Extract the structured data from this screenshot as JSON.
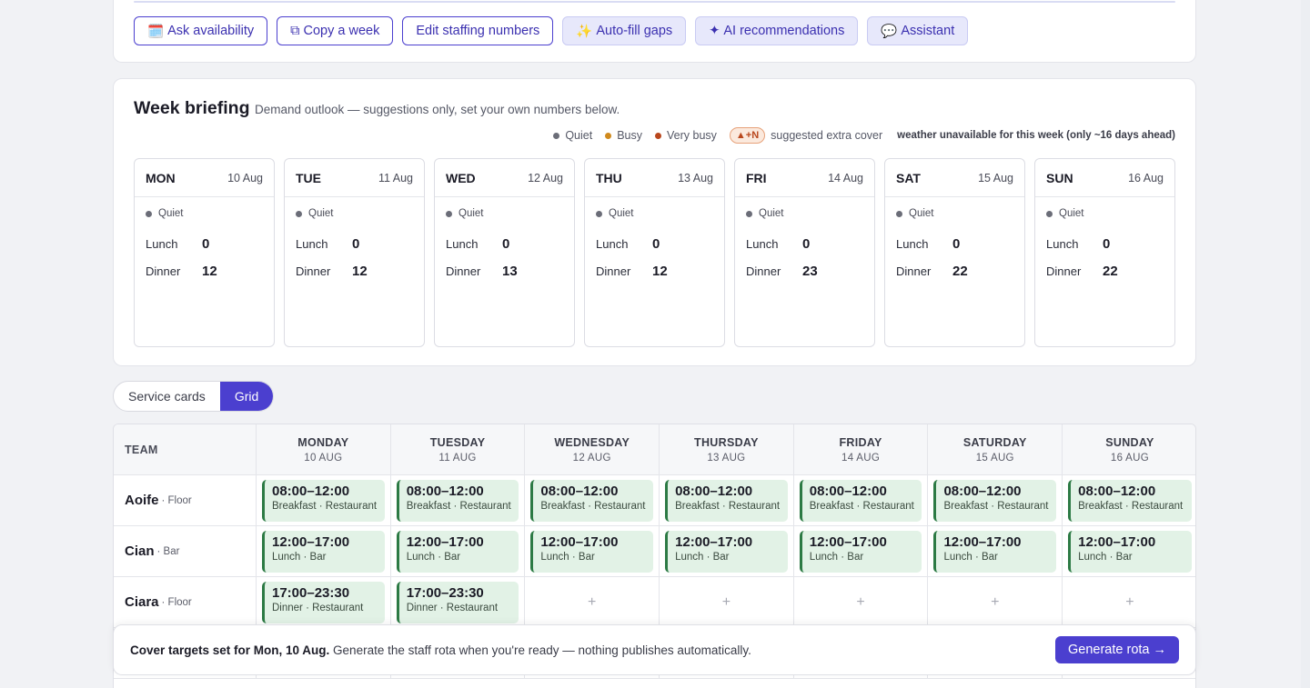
{
  "toolbar": {
    "buttons": [
      {
        "icon": "calendar-icon",
        "glyph": "🗓️",
        "label": "Ask availability",
        "style": "outline"
      },
      {
        "icon": "copy-icon",
        "glyph": "⧉",
        "label": "Copy a week",
        "style": "outline"
      },
      {
        "icon": "",
        "glyph": "",
        "label": "Edit staffing numbers",
        "style": "outline"
      },
      {
        "icon": "sparkles-icon",
        "glyph": "✨",
        "label": "Auto-fill gaps",
        "style": "soft"
      },
      {
        "icon": "star-icon",
        "glyph": "✦",
        "label": "AI recommendations",
        "style": "soft"
      },
      {
        "icon": "chat-bubble-icon",
        "glyph": "💬",
        "label": "Assistant",
        "style": "soft"
      }
    ]
  },
  "briefing": {
    "title": "Week briefing",
    "subtitle": "Demand outlook — suggestions only, set your own numbers below.",
    "legend": {
      "quiet": "Quiet",
      "busy": "Busy",
      "very_busy": "Very busy",
      "extra_badge": "▲+N",
      "extra_label": "suggested extra cover",
      "weather": "weather unavailable for this week (only ~16 days ahead)"
    },
    "lunch_label": "Lunch",
    "dinner_label": "Dinner",
    "days": [
      {
        "name": "MON",
        "date": "10 Aug",
        "level": "Quiet",
        "lunch": "0",
        "dinner": "12"
      },
      {
        "name": "TUE",
        "date": "11 Aug",
        "level": "Quiet",
        "lunch": "0",
        "dinner": "12"
      },
      {
        "name": "WED",
        "date": "12 Aug",
        "level": "Quiet",
        "lunch": "0",
        "dinner": "13"
      },
      {
        "name": "THU",
        "date": "13 Aug",
        "level": "Quiet",
        "lunch": "0",
        "dinner": "12"
      },
      {
        "name": "FRI",
        "date": "14 Aug",
        "level": "Quiet",
        "lunch": "0",
        "dinner": "23"
      },
      {
        "name": "SAT",
        "date": "15 Aug",
        "level": "Quiet",
        "lunch": "0",
        "dinner": "22"
      },
      {
        "name": "SUN",
        "date": "16 Aug",
        "level": "Quiet",
        "lunch": "0",
        "dinner": "22"
      }
    ]
  },
  "view_toggle": {
    "options": [
      "Service cards",
      "Grid"
    ],
    "selected": "Grid"
  },
  "grid": {
    "team_header": "TEAM",
    "columns": [
      {
        "day": "MONDAY",
        "date": "10 AUG"
      },
      {
        "day": "TUESDAY",
        "date": "11 AUG"
      },
      {
        "day": "WEDNESDAY",
        "date": "12 AUG"
      },
      {
        "day": "THURSDAY",
        "date": "13 AUG"
      },
      {
        "day": "FRIDAY",
        "date": "14 AUG"
      },
      {
        "day": "SATURDAY",
        "date": "15 AUG"
      },
      {
        "day": "SUNDAY",
        "date": "16 AUG"
      }
    ],
    "rows": [
      {
        "name": "Aoife",
        "role": "· Floor",
        "shifts": [
          {
            "time": "08:00–12:00",
            "detail": "Breakfast · Restaurant"
          },
          {
            "time": "08:00–12:00",
            "detail": "Breakfast · Restaurant"
          },
          {
            "time": "08:00–12:00",
            "detail": "Breakfast · Restaurant"
          },
          {
            "time": "08:00–12:00",
            "detail": "Breakfast · Restaurant"
          },
          {
            "time": "08:00–12:00",
            "detail": "Breakfast · Restaurant"
          },
          {
            "time": "08:00–12:00",
            "detail": "Breakfast · Restaurant"
          },
          {
            "time": "08:00–12:00",
            "detail": "Breakfast · Restaurant"
          }
        ]
      },
      {
        "name": "Cian",
        "role": "· Bar",
        "shifts": [
          {
            "time": "12:00–17:00",
            "detail": "Lunch · Bar"
          },
          {
            "time": "12:00–17:00",
            "detail": "Lunch · Bar"
          },
          {
            "time": "12:00–17:00",
            "detail": "Lunch · Bar"
          },
          {
            "time": "12:00–17:00",
            "detail": "Lunch · Bar"
          },
          {
            "time": "12:00–17:00",
            "detail": "Lunch · Bar"
          },
          {
            "time": "12:00–17:00",
            "detail": "Lunch · Bar"
          },
          {
            "time": "12:00–17:00",
            "detail": "Lunch · Bar"
          }
        ]
      },
      {
        "name": "Ciara",
        "role": "· Floor",
        "shifts": [
          {
            "time": "17:00–23:30",
            "detail": "Dinner · Restaurant"
          },
          {
            "time": "17:00–23:30",
            "detail": "Dinner · Restaurant"
          },
          null,
          null,
          null,
          null,
          null
        ]
      }
    ],
    "add_glyph": "+"
  },
  "footer": {
    "bold_text": "Cover targets set for Mon, 10 Aug.",
    "text": " Generate the staff rota when you're ready — nothing publishes automatically.",
    "generate_label": "Generate rota →"
  },
  "colors": {
    "accent": "#4b3fcf",
    "shift_bg": "#e2f2e6",
    "shift_border": "#2c7a44"
  }
}
